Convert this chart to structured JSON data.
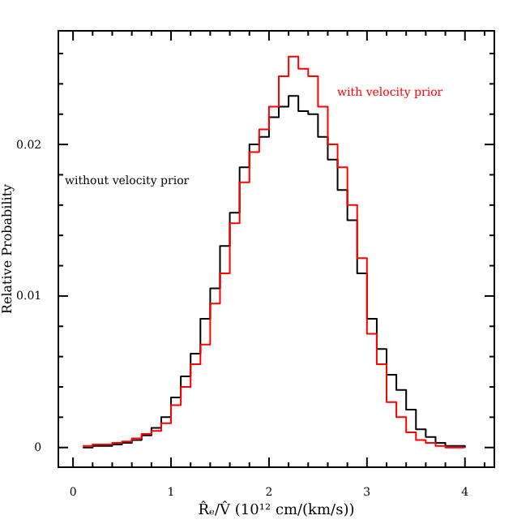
{
  "chart_data": {
    "type": "step",
    "xlabel": "R̂ₑ/V̂  (10¹² cm/(km/s))",
    "ylabel": "Relative Probability",
    "legend": false,
    "grid": false,
    "xlim": [
      -0.15,
      4.3
    ],
    "ylim": [
      -0.0013,
      0.0275
    ],
    "xticks": [
      0,
      {
        "value": 0.2,
        "label": null
      },
      {
        "value": 0.4,
        "label": null
      },
      {
        "value": 0.6,
        "label": null
      },
      {
        "value": 0.8,
        "label": null
      },
      1,
      {
        "value": 1.2,
        "label": null
      },
      {
        "value": 1.4,
        "label": null
      },
      {
        "value": 1.6,
        "label": null
      },
      {
        "value": 1.8,
        "label": null
      },
      2,
      {
        "value": 2.2,
        "label": null
      },
      {
        "value": 2.4,
        "label": null
      },
      {
        "value": 2.6,
        "label": null
      },
      {
        "value": 2.8,
        "label": null
      },
      3,
      {
        "value": 3.2,
        "label": null
      },
      {
        "value": 3.4,
        "label": null
      },
      {
        "value": 3.6,
        "label": null
      },
      {
        "value": 3.8,
        "label": null
      },
      4,
      {
        "value": 4.2,
        "label": null
      }
    ],
    "yticks": [
      0,
      {
        "value": 0.002,
        "label": null
      },
      {
        "value": 0.004,
        "label": null
      },
      {
        "value": 0.006,
        "label": null
      },
      {
        "value": 0.008,
        "label": null
      },
      0.01,
      {
        "value": 0.012,
        "label": null
      },
      {
        "value": 0.014,
        "label": null
      },
      {
        "value": 0.016,
        "label": null
      },
      {
        "value": 0.018,
        "label": null
      },
      0.02,
      {
        "value": 0.022,
        "label": null
      },
      {
        "value": 0.024,
        "label": null
      },
      {
        "value": 0.026,
        "label": null
      }
    ],
    "x": [
      0.1,
      0.2,
      0.3,
      0.4,
      0.5,
      0.6,
      0.7,
      0.8,
      0.9,
      1.0,
      1.1,
      1.2,
      1.3,
      1.4,
      1.5,
      1.6,
      1.7,
      1.8,
      1.9,
      2.0,
      2.1,
      2.2,
      2.3,
      2.4,
      2.5,
      2.6,
      2.7,
      2.8,
      2.9,
      3.0,
      3.1,
      3.2,
      3.3,
      3.4,
      3.5,
      3.6,
      3.7,
      3.8,
      3.9,
      4.0
    ],
    "series": [
      {
        "name": "without velocity prior",
        "color": "#000000",
        "values": [
          0,
          0.0001,
          0.0001,
          0.0002,
          0.0003,
          0.0005,
          0.0008,
          0.0013,
          0.002,
          0.0033,
          0.0047,
          0.0062,
          0.0085,
          0.0105,
          0.0133,
          0.0155,
          0.0185,
          0.02,
          0.0205,
          0.0218,
          0.0225,
          0.0232,
          0.0222,
          0.022,
          0.0205,
          0.019,
          0.017,
          0.015,
          0.0115,
          0.0085,
          0.0065,
          0.0048,
          0.0038,
          0.0025,
          0.0012,
          0.0007,
          0.0003,
          0.0001,
          0.0001,
          0
        ]
      },
      {
        "name": "with velocity prior",
        "color": "#ff0000",
        "values": [
          0.0001,
          0.0002,
          0.0002,
          0.0003,
          0.0004,
          0.0006,
          0.0009,
          0.0011,
          0.0016,
          0.0028,
          0.004,
          0.0055,
          0.0068,
          0.0095,
          0.0115,
          0.0148,
          0.0175,
          0.0195,
          0.021,
          0.0225,
          0.0245,
          0.0258,
          0.025,
          0.0245,
          0.0225,
          0.02,
          0.0185,
          0.016,
          0.0125,
          0.0075,
          0.0055,
          0.003,
          0.002,
          0.001,
          0.0005,
          0.0003,
          0.0001,
          0,
          0,
          0
        ]
      }
    ]
  }
}
